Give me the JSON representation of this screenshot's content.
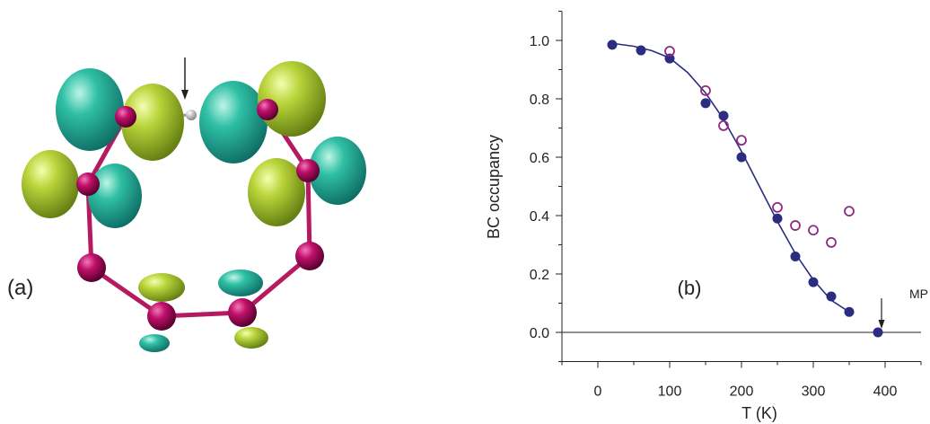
{
  "panel_a": {
    "label": "(a)"
  },
  "chart_data": {
    "type": "scatter",
    "x_label": "T (K)",
    "y_label": "BC occupancy",
    "annotations": [
      "(b)",
      "MP"
    ],
    "xlim": [
      -50,
      450
    ],
    "ylim": [
      -0.1,
      1.1
    ],
    "xticks": [
      0,
      100,
      200,
      300,
      400
    ],
    "x_minor_ticks": [
      -50,
      50,
      150,
      250,
      350,
      450
    ],
    "yticks": [
      {
        "value": 0,
        "label": "0.0"
      },
      {
        "value": 0.2,
        "label": "0.2"
      },
      {
        "value": 0.4,
        "label": "0.4"
      },
      {
        "value": 0.6,
        "label": "0.6"
      },
      {
        "value": 0.8,
        "label": "0.8"
      },
      {
        "value": 1,
        "label": "1.0"
      }
    ],
    "y_minor_ticks": [
      -0.1,
      0.1,
      0.3,
      0.5,
      0.7,
      0.9,
      1.1
    ],
    "hline": 0,
    "series": [
      {
        "type": "scatter",
        "marker": "filled",
        "color": "#2b2d80",
        "x": [
          20,
          60,
          100,
          150,
          175,
          200,
          250,
          275,
          300,
          325,
          350,
          390
        ],
        "values": [
          0.985,
          0.966,
          0.938,
          0.785,
          0.742,
          0.6,
          0.39,
          0.26,
          0.172,
          0.123,
          0.07,
          0
        ]
      },
      {
        "type": "scatter",
        "marker": "open",
        "color": "#8e2a80",
        "x": [
          100,
          150,
          175,
          200,
          250,
          275,
          300,
          325,
          350
        ],
        "values": [
          0.963,
          0.828,
          0.708,
          0.658,
          0.428,
          0.366,
          0.35,
          0.308,
          0.415
        ]
      },
      {
        "type": "line",
        "color": "#2b2d80",
        "x": [
          20,
          50,
          75,
          100,
          125,
          150,
          175,
          200,
          225,
          250,
          275,
          300,
          325,
          350
        ],
        "values": [
          0.99,
          0.98,
          0.965,
          0.94,
          0.89,
          0.82,
          0.73,
          0.62,
          0.5,
          0.38,
          0.27,
          0.18,
          0.11,
          0.07
        ]
      }
    ]
  }
}
